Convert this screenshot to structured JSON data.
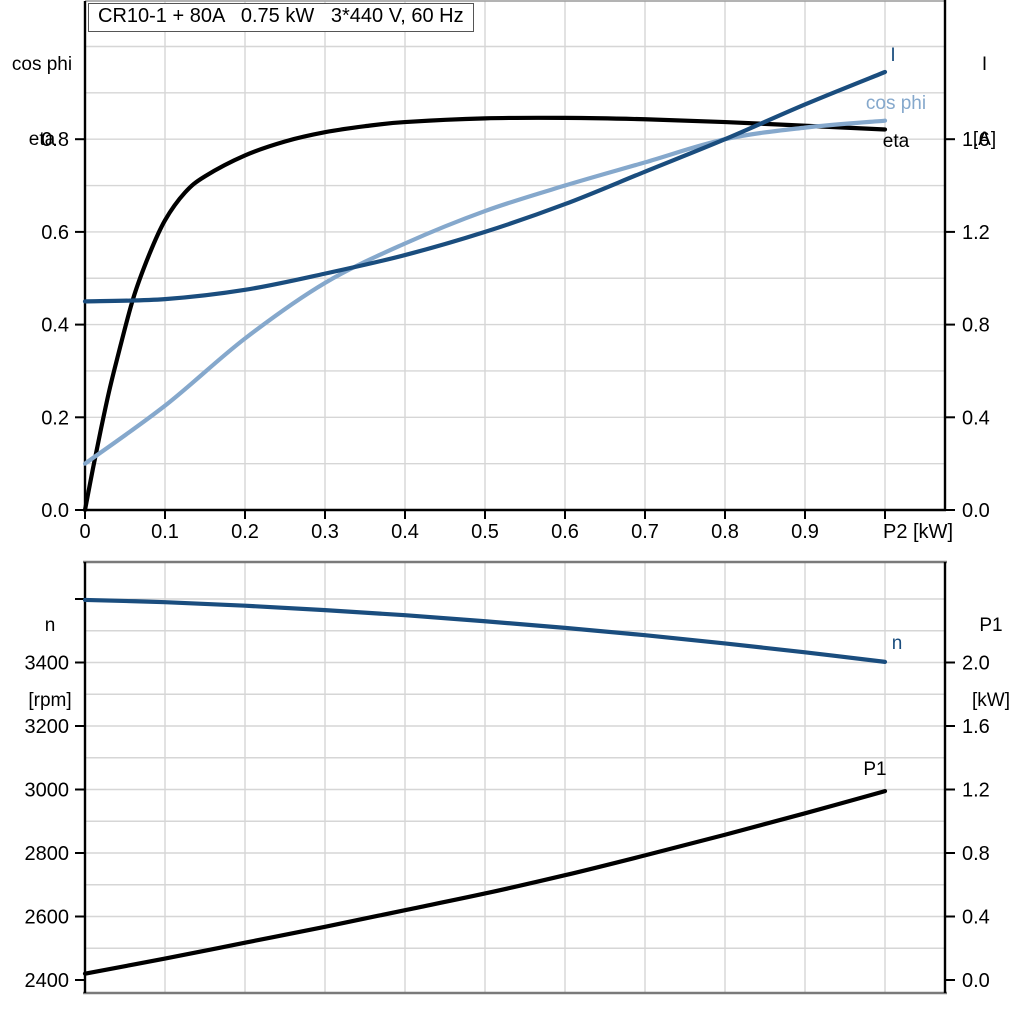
{
  "colors": {
    "dark_blue": "#1a4d7e",
    "light_blue": "#85a8cc",
    "black": "#000000",
    "grid": "#d6d6d6",
    "frame": "#7a7a7a"
  },
  "title_box": "CR10-1 + 80A   0.75 kW   3*440 V, 60 Hz",
  "top_chart": {
    "left_axis_title": [
      "cos phi",
      "eta"
    ],
    "right_axis_title": [
      "I",
      "[A]"
    ],
    "x_axis_end_label": "P2 [kW]",
    "left_ticks": [
      {
        "label": "0.0",
        "v": 0.0
      },
      {
        "label": "0.2",
        "v": 0.2
      },
      {
        "label": "0.4",
        "v": 0.4
      },
      {
        "label": "0.6",
        "v": 0.6
      },
      {
        "label": "0.8",
        "v": 0.8
      }
    ],
    "right_ticks": [
      {
        "label": "0.0",
        "v": 0.0
      },
      {
        "label": "0.4",
        "v": 0.4
      },
      {
        "label": "0.8",
        "v": 0.8
      },
      {
        "label": "1.2",
        "v": 1.2
      },
      {
        "label": "1.6",
        "v": 1.6
      }
    ],
    "x_ticks": [
      {
        "label": "0",
        "v": 0
      },
      {
        "label": "0.1",
        "v": 0.1
      },
      {
        "label": "0.2",
        "v": 0.2
      },
      {
        "label": "0.3",
        "v": 0.3
      },
      {
        "label": "0.4",
        "v": 0.4
      },
      {
        "label": "0.5",
        "v": 0.5
      },
      {
        "label": "0.6",
        "v": 0.6
      },
      {
        "label": "0.7",
        "v": 0.7
      },
      {
        "label": "0.8",
        "v": 0.8
      },
      {
        "label": "0.9",
        "v": 0.9
      }
    ],
    "curve_labels": {
      "I": "I",
      "cos_phi": "cos phi",
      "eta": "eta"
    }
  },
  "bottom_chart": {
    "left_axis_title": [
      "n",
      "[rpm]"
    ],
    "right_axis_title": [
      "P1",
      "[kW]"
    ],
    "left_ticks": [
      {
        "label": "2400",
        "v": 2400
      },
      {
        "label": "2600",
        "v": 2600
      },
      {
        "label": "2800",
        "v": 2800
      },
      {
        "label": "3000",
        "v": 3000
      },
      {
        "label": "3200",
        "v": 3200
      },
      {
        "label": "3400",
        "v": 3400
      }
    ],
    "right_ticks": [
      {
        "label": "0.0",
        "v": 0.0
      },
      {
        "label": "0.4",
        "v": 0.4
      },
      {
        "label": "0.8",
        "v": 0.8
      },
      {
        "label": "1.2",
        "v": 1.2
      },
      {
        "label": "1.6",
        "v": 1.6
      },
      {
        "label": "2.0",
        "v": 2.0
      }
    ],
    "curve_labels": {
      "n": "n",
      "P1": "P1"
    }
  },
  "chart_data": [
    {
      "type": "line",
      "title": "CR10-1 + 80A   0.75 kW   3*440 V, 60 Hz",
      "xlabel": "P2 [kW]",
      "x_range": [
        0,
        1.0
      ],
      "grid": true,
      "left_axis": {
        "label": "cos phi / eta",
        "range": [
          0,
          1.1
        ],
        "tick_step": 0.2,
        "minor_grid_step": 0.1
      },
      "right_axis": {
        "label": "I [A]",
        "range": [
          0,
          2.2
        ],
        "tick_step": 0.4,
        "minor_grid_step": 0.2
      },
      "series": [
        {
          "name": "eta",
          "axis": "left",
          "color": "black",
          "x": [
            0,
            0.01,
            0.02,
            0.03,
            0.04,
            0.06,
            0.08,
            0.1,
            0.125,
            0.15,
            0.2,
            0.25,
            0.3,
            0.35,
            0.4,
            0.5,
            0.6,
            0.7,
            0.8,
            0.9,
            1.0
          ],
          "y": [
            0,
            0.09,
            0.175,
            0.255,
            0.325,
            0.455,
            0.55,
            0.625,
            0.685,
            0.72,
            0.765,
            0.795,
            0.815,
            0.828,
            0.837,
            0.845,
            0.846,
            0.843,
            0.837,
            0.829,
            0.821
          ]
        },
        {
          "name": "cos phi",
          "axis": "left",
          "color": "light_blue",
          "x": [
            0,
            0.1,
            0.2,
            0.3,
            0.4,
            0.5,
            0.6,
            0.7,
            0.8,
            0.9,
            1.0
          ],
          "y": [
            0.1,
            0.225,
            0.37,
            0.49,
            0.575,
            0.645,
            0.7,
            0.75,
            0.8,
            0.825,
            0.84
          ]
        },
        {
          "name": "I",
          "axis": "right",
          "color": "dark_blue",
          "x": [
            0,
            0.1,
            0.2,
            0.3,
            0.4,
            0.5,
            0.6,
            0.7,
            0.8,
            0.9,
            1.0
          ],
          "y": [
            0.9,
            0.91,
            0.95,
            1.02,
            1.1,
            1.2,
            1.32,
            1.46,
            1.6,
            1.75,
            1.89
          ]
        }
      ]
    },
    {
      "type": "line",
      "xlabel": "",
      "x_range": [
        0,
        1.0
      ],
      "grid": true,
      "left_axis": {
        "label": "n [rpm]",
        "range": [
          2360,
          3715
        ],
        "tick_step": 200,
        "minor_grid_step": 100
      },
      "right_axis": {
        "label": "P1 [kW]",
        "range": [
          0,
          2.4
        ],
        "tick_step": 0.4,
        "minor_grid_step": 0.2
      },
      "series": [
        {
          "name": "n",
          "axis": "left",
          "color": "dark_blue",
          "x": [
            0,
            0.1,
            0.2,
            0.3,
            0.4,
            0.5,
            0.6,
            0.7,
            0.8,
            0.9,
            1.0
          ],
          "y": [
            3597,
            3590,
            3579,
            3565,
            3549,
            3530,
            3509,
            3486,
            3460,
            3432,
            3402
          ]
        },
        {
          "name": "P1",
          "axis": "right",
          "color": "black",
          "x": [
            0,
            0.1,
            0.2,
            0.3,
            0.4,
            0.5,
            0.6,
            0.7,
            0.8,
            0.9,
            1.0
          ],
          "y": [
            0.04,
            0.135,
            0.235,
            0.335,
            0.44,
            0.545,
            0.66,
            0.785,
            0.915,
            1.05,
            1.19
          ]
        }
      ]
    }
  ]
}
